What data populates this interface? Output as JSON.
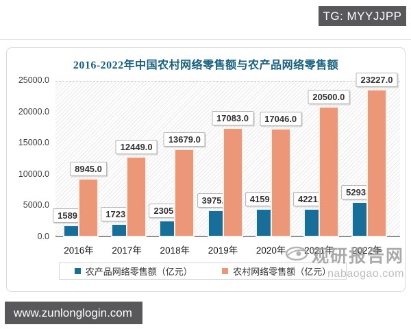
{
  "badge": {
    "text": "TG: MYYJJPP"
  },
  "footer": {
    "url": "www.zunlonglogin.com"
  },
  "watermark": {
    "name": "观研报告网",
    "domain": "nabaogao.com"
  },
  "chart_data": {
    "type": "bar",
    "title": "2016-2022年中国农村网络零售额与农产品网络零售额",
    "categories": [
      "2016年",
      "2017年",
      "2018年",
      "2019年",
      "2020年",
      "2021年",
      "2022年"
    ],
    "series": [
      {
        "name": "农产品网络零售额（亿元）",
        "color": "#176e99",
        "values": [
          1589.0,
          1723.0,
          2305.0,
          3975.0,
          4159.0,
          4221.0,
          5293.0
        ]
      },
      {
        "name": "农村网络零售额（亿元）",
        "color": "#eb9778",
        "values": [
          8945.0,
          12449.0,
          13679.0,
          17083.0,
          17046.0,
          20500.0,
          23227.0
        ]
      }
    ],
    "ylim": [
      0,
      25000
    ],
    "yticks": [
      0.0,
      5000.0,
      10000.0,
      15000.0,
      20000.0,
      25000.0
    ],
    "data_labels": true,
    "legend_position": "bottom",
    "plot_background": "diagonal-hatch",
    "title_color": "#17607f"
  }
}
